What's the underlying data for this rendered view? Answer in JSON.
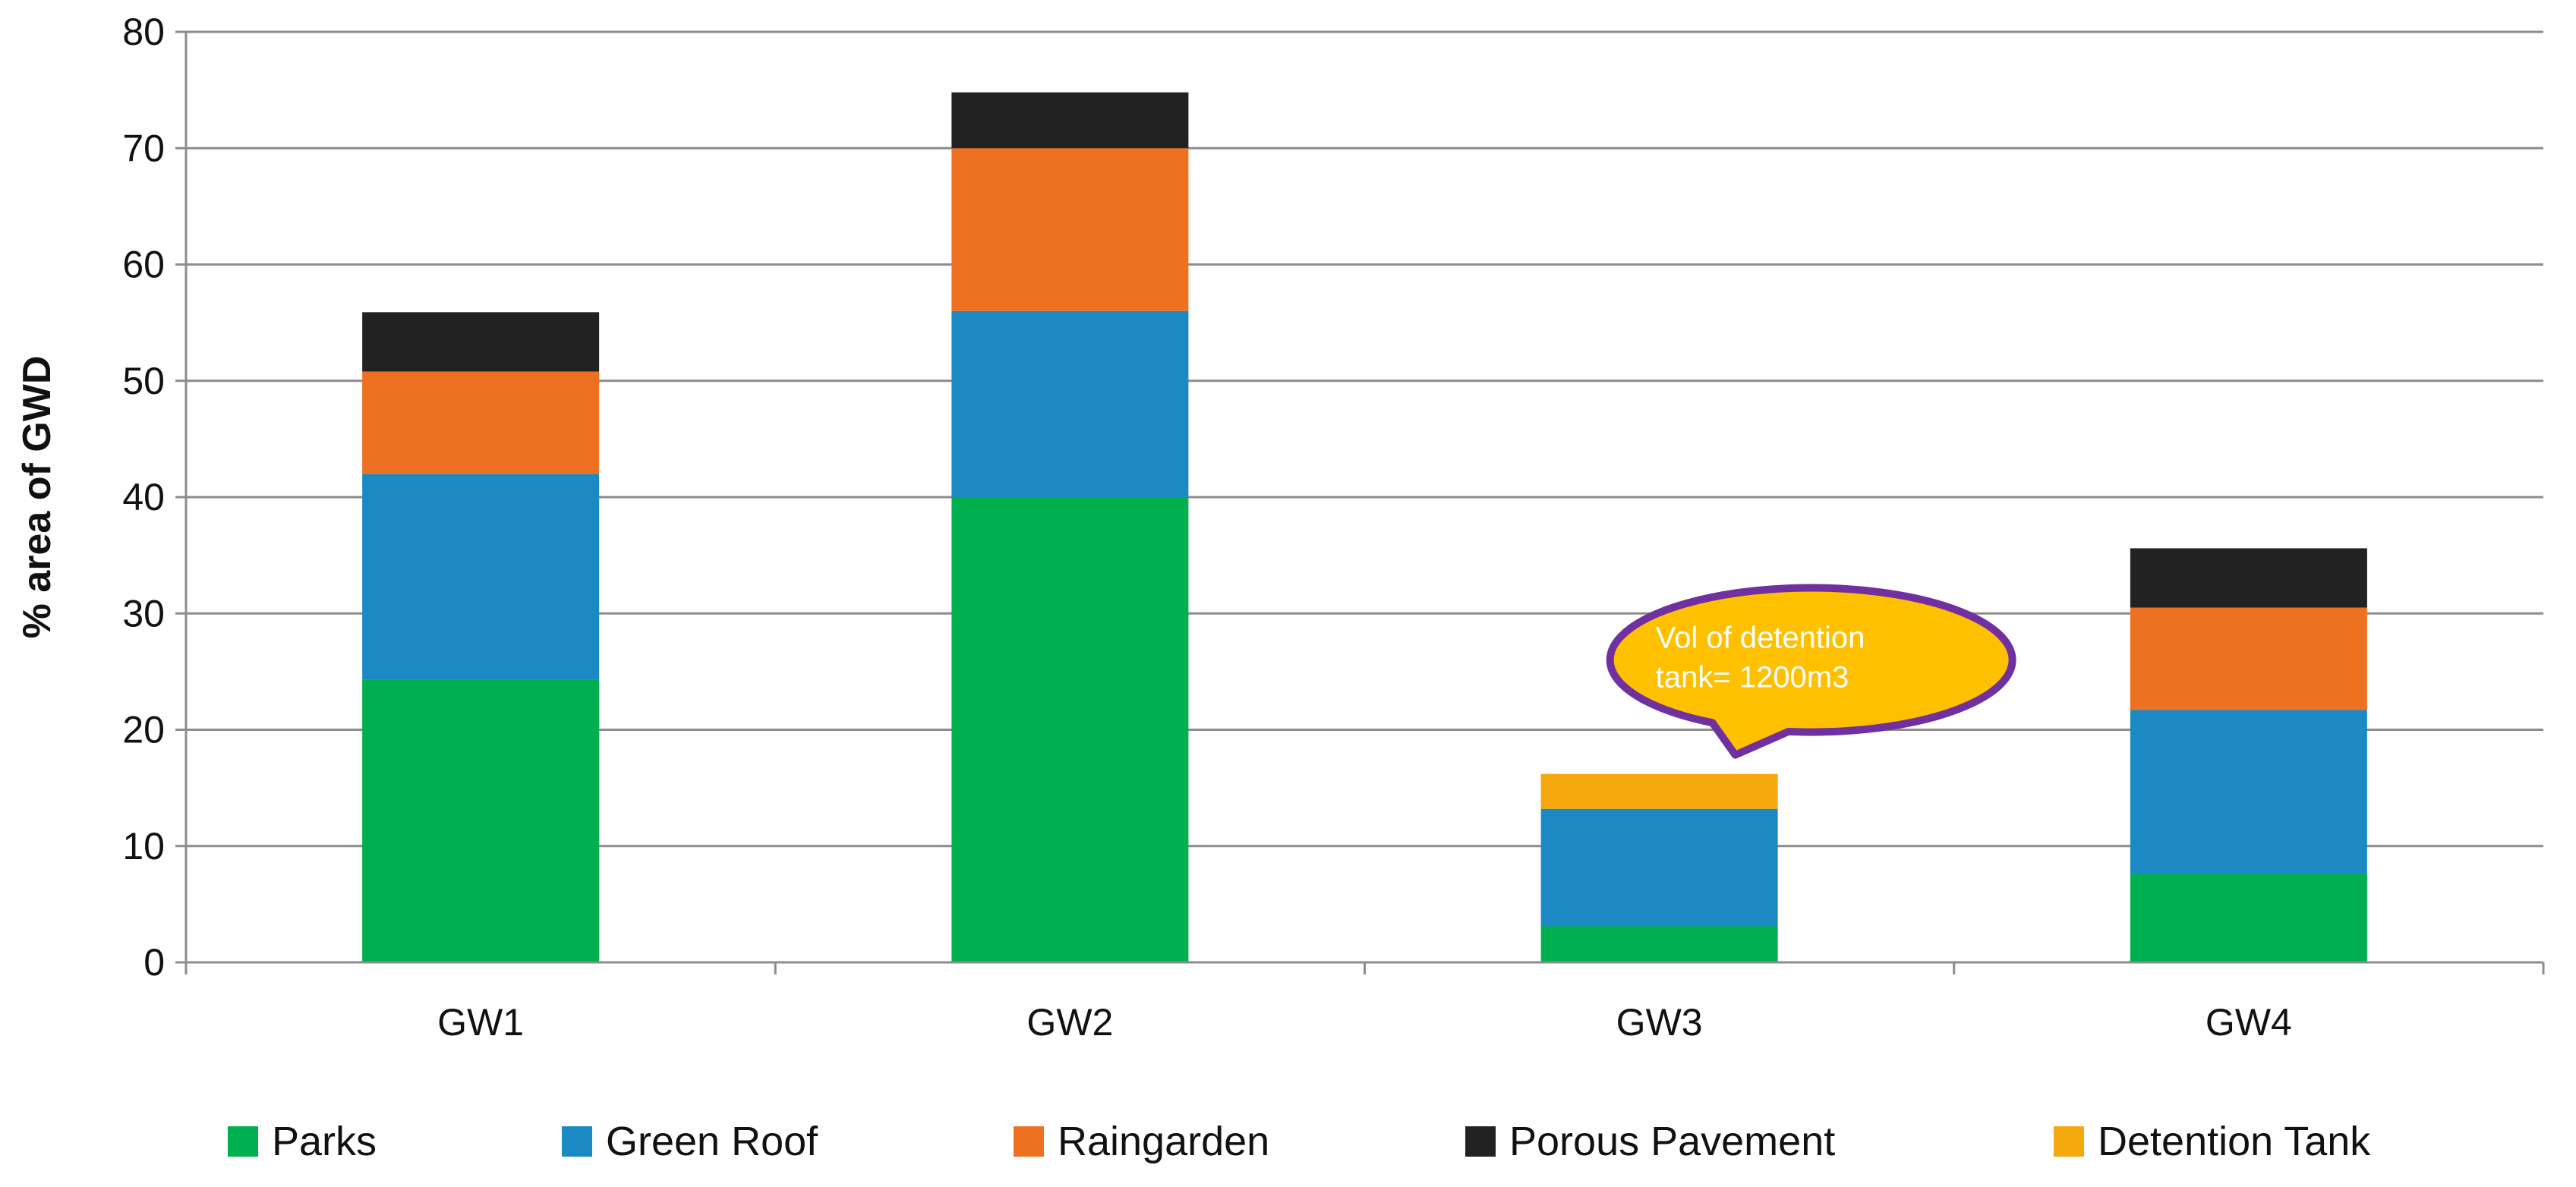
{
  "chart_data": {
    "type": "bar",
    "stacked": true,
    "title": "",
    "xlabel": "",
    "ylabel": "% area of GWD",
    "ylim": [
      0,
      80
    ],
    "yticks": [
      0,
      10,
      20,
      30,
      40,
      50,
      60,
      70,
      80
    ],
    "grid": true,
    "legend_position": "bottom",
    "categories": [
      "GW1",
      "GW2",
      "GW3",
      "GW4"
    ],
    "series": [
      {
        "name": "Parks",
        "color": "#00B050",
        "values": [
          24.3,
          40,
          3.1,
          7.6
        ]
      },
      {
        "name": "Green Roof",
        "color": "#1B8AC4",
        "values": [
          17.7,
          16,
          10.1,
          14.1
        ]
      },
      {
        "name": "Raingarden",
        "color": "#EE7122",
        "values": [
          8.8,
          14,
          0,
          8.8
        ]
      },
      {
        "name": "Porous Pavement",
        "color": "#222222",
        "values": [
          5.1,
          4.8,
          0,
          5.1
        ]
      },
      {
        "name": "Detention Tank",
        "color": "#F5A80D",
        "values": [
          0,
          0,
          3.0,
          0
        ]
      }
    ],
    "annotation": {
      "lines": [
        "Vol of detention",
        "tank= 1200m3"
      ],
      "category": "GW3",
      "fill": "#FFC000",
      "border": "#7030A0"
    }
  }
}
